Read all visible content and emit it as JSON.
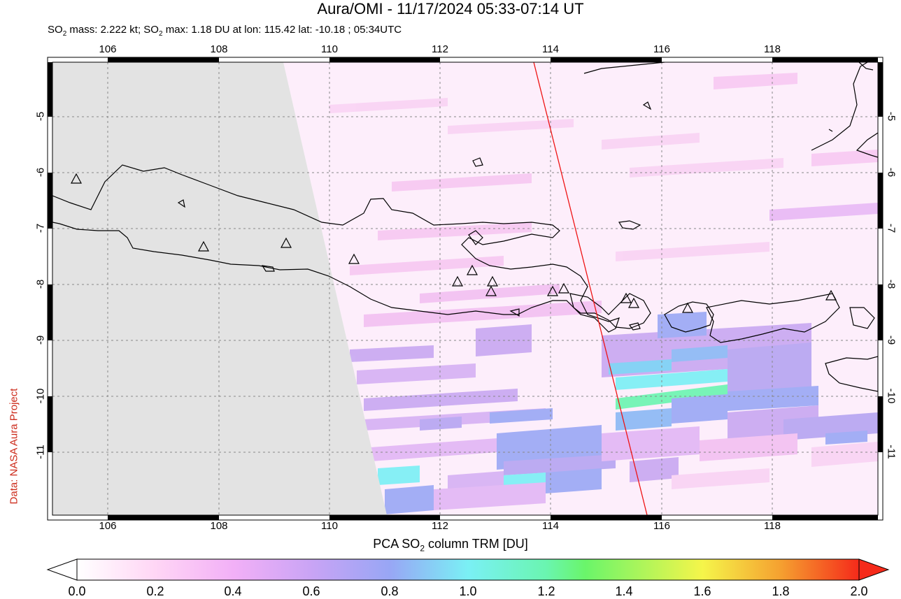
{
  "title": "Aura/OMI - 11/17/2024 05:33-07:14 UT",
  "subtitle": {
    "prefix": "SO",
    "sub": "2",
    "text": " mass: 2.222 kt; SO",
    "sub2": "2",
    "text2": " max: 1.18 DU at lon: 115.42 lat: -10.18 ; 05:34UTC"
  },
  "credit": "Data: NASA Aura Project",
  "map": {
    "lon_ticks": [
      "106",
      "108",
      "110",
      "112",
      "114",
      "116",
      "118"
    ],
    "lat_ticks": [
      "-5",
      "-6",
      "-7",
      "-8",
      "-9",
      "-10",
      "-11"
    ],
    "lon_range": [
      105,
      120
    ],
    "lat_range": [
      -12,
      -4
    ]
  },
  "colorbar": {
    "title_prefix": "PCA SO",
    "title_sub": "2",
    "title_suffix": " column TRM [DU]",
    "ticks": [
      "0.0",
      "0.2",
      "0.4",
      "0.6",
      "0.8",
      "1.0",
      "1.2",
      "1.4",
      "1.6",
      "1.8",
      "2.0"
    ],
    "colors": [
      "#ffffff",
      "#ffd6f5",
      "#f0a8f5",
      "#b9a0f5",
      "#8aa8f5",
      "#7df5f5",
      "#6af56a",
      "#9ef54a",
      "#f5f54a",
      "#f5a030",
      "#f52a1a"
    ]
  },
  "volcanoes_icon": "triangle-icon"
}
